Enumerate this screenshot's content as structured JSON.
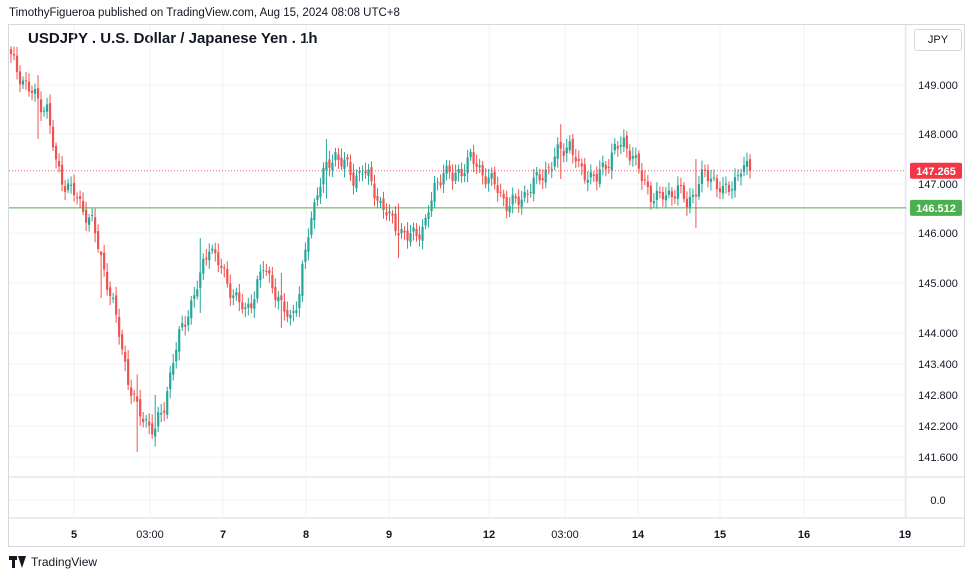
{
  "header": {
    "published": "TimothyFigueroa published on TradingView.com, Aug 15, 2024 08:08 UTC+8"
  },
  "footer": {
    "brand": "TradingView"
  },
  "colors": {
    "up": "#26a69a",
    "down": "#ef5350",
    "support": "#4caf50",
    "price_tag": "#f23645"
  },
  "chart_data": {
    "type": "candlestick",
    "title": "USDJPY . U.S. Dollar / Japanese Yen . 1h",
    "currency": "JPY",
    "x_tick_labels": [
      "5",
      "03:00",
      "7",
      "8",
      "9",
      "12",
      "03:00",
      "14",
      "15",
      "16",
      "19"
    ],
    "y_tick_labels": [
      "149.000",
      "148.000",
      "147.000",
      "146.000",
      "145.000",
      "144.000",
      "143.400",
      "142.800",
      "142.200",
      "141.600",
      "0.0"
    ],
    "y_scale": "log",
    "grid": true,
    "last_price": 147.265,
    "horizontal_line": 146.512,
    "price_labels": [
      "147.265",
      "146.512"
    ],
    "close_path": [
      [
        0,
        149.55
      ],
      [
        3,
        149.2
      ],
      [
        6,
        148.9
      ],
      [
        9,
        148.7
      ],
      [
        12,
        148.5
      ],
      [
        15,
        147.4
      ],
      [
        18,
        147.0
      ],
      [
        21,
        146.8
      ],
      [
        24,
        146.5
      ],
      [
        27,
        146.2
      ],
      [
        30,
        145.5
      ],
      [
        33,
        144.8
      ],
      [
        36,
        144.0
      ],
      [
        39,
        143.1
      ],
      [
        42,
        142.5
      ],
      [
        45,
        142.3
      ],
      [
        48,
        142.1
      ],
      [
        51,
        142.6
      ],
      [
        54,
        143.5
      ],
      [
        57,
        144.1
      ],
      [
        60,
        144.6
      ],
      [
        63,
        145.1
      ],
      [
        66,
        145.8
      ],
      [
        69,
        145.4
      ],
      [
        72,
        145.0
      ],
      [
        75,
        144.7
      ],
      [
        78,
        144.4
      ],
      [
        81,
        144.8
      ],
      [
        84,
        145.3
      ],
      [
        87,
        145.0
      ],
      [
        90,
        144.5
      ],
      [
        93,
        144.3
      ],
      [
        96,
        144.8
      ],
      [
        99,
        146.0
      ],
      [
        102,
        146.9
      ],
      [
        105,
        147.3
      ],
      [
        108,
        147.6
      ],
      [
        111,
        147.4
      ],
      [
        114,
        147.1
      ],
      [
        117,
        147.3
      ],
      [
        120,
        147.0
      ],
      [
        123,
        146.6
      ],
      [
        126,
        146.3
      ],
      [
        129,
        146.1
      ],
      [
        132,
        145.9
      ],
      [
        135,
        146.0
      ],
      [
        138,
        146.2
      ],
      [
        141,
        146.9
      ],
      [
        144,
        147.3
      ],
      [
        147,
        147.1
      ],
      [
        150,
        147.3
      ],
      [
        153,
        147.5
      ],
      [
        156,
        147.3
      ],
      [
        159,
        147.1
      ],
      [
        162,
        146.9
      ],
      [
        165,
        146.6
      ],
      [
        168,
        146.6
      ],
      [
        171,
        146.8
      ],
      [
        174,
        147.0
      ],
      [
        177,
        147.2
      ],
      [
        180,
        147.4
      ],
      [
        183,
        147.7
      ],
      [
        186,
        147.8
      ],
      [
        189,
        147.3
      ],
      [
        192,
        147.2
      ],
      [
        195,
        147.1
      ],
      [
        198,
        147.4
      ],
      [
        201,
        147.7
      ],
      [
        204,
        147.8
      ],
      [
        207,
        147.6
      ],
      [
        210,
        147.1
      ],
      [
        213,
        146.8
      ],
      [
        216,
        146.7
      ],
      [
        219,
        146.8
      ],
      [
        222,
        146.9
      ],
      [
        225,
        146.6
      ],
      [
        228,
        146.9
      ],
      [
        231,
        147.2
      ],
      [
        234,
        147.1
      ],
      [
        237,
        146.8
      ],
      [
        240,
        147.0
      ],
      [
        243,
        147.3
      ],
      [
        246,
        147.265
      ]
    ],
    "wick_extremes": [
      [
        9,
        149.2,
        147.9
      ],
      [
        30,
        145.6,
        144.7
      ],
      [
        42,
        143.2,
        141.7
      ],
      [
        48,
        142.8,
        141.8
      ],
      [
        63,
        145.9,
        144.4
      ],
      [
        90,
        145.2,
        144.1
      ],
      [
        105,
        147.9,
        146.7
      ],
      [
        129,
        146.6,
        145.5
      ],
      [
        183,
        148.2,
        147.1
      ],
      [
        228,
        147.5,
        146.1
      ]
    ]
  }
}
